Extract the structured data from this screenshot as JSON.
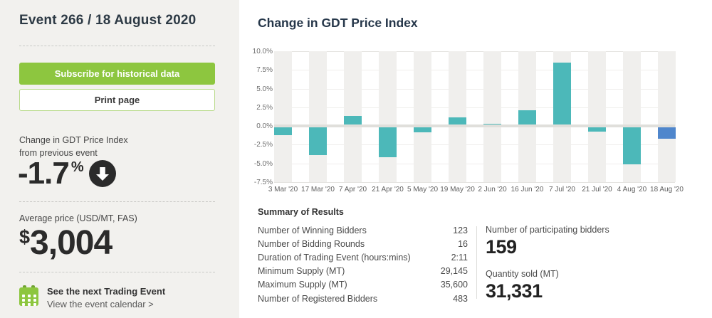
{
  "sidebar": {
    "title": "Event 266 / 18 August 2020",
    "subscribe_label": "Subscribe for historical data",
    "print_label": "Print page",
    "change_label_line1": "Change in GDT Price Index",
    "change_label_line2": "from previous event",
    "change_value": "-1.7",
    "change_unit": "%",
    "change_direction_icon": "down-arrow-circle",
    "avg_price_label": "Average price (USD/MT, FAS)",
    "avg_price_currency": "$",
    "avg_price_value": "3,004",
    "next_event_title": "See the next Trading Event",
    "next_event_link": "View the event calendar >"
  },
  "main": {
    "chart_title": "Change in GDT Price Index",
    "summary": {
      "title": "Summary of Results",
      "rows": [
        {
          "label": "Number of Winning Bidders",
          "value": "123"
        },
        {
          "label": "Number of Bidding Rounds",
          "value": "16"
        },
        {
          "label": "Duration of Trading Event (hours:mins)",
          "value": "2:11"
        },
        {
          "label": "Minimum Supply (MT)",
          "value": "29,145"
        },
        {
          "label": "Maximum Supply (MT)",
          "value": "35,600"
        },
        {
          "label": "Number of Registered Bidders",
          "value": "483"
        }
      ]
    },
    "stats": [
      {
        "label": "Number of participating bidders",
        "value": "159"
      },
      {
        "label": "Quantity sold (MT)",
        "value": "31,331"
      }
    ]
  },
  "chart_data": {
    "type": "bar",
    "title": "Change in GDT Price Index",
    "categories": [
      "3 Mar '20",
      "17 Mar '20",
      "7 Apr '20",
      "21 Apr '20",
      "5 May '20",
      "19 May '20",
      "2 Jun '20",
      "16 Jun '20",
      "7 Jul '20",
      "21 Jul '20",
      "4 Aug '20",
      "18 Aug '20"
    ],
    "values": [
      -1.2,
      -3.9,
      1.2,
      -4.2,
      -0.8,
      1.0,
      0.1,
      1.9,
      8.3,
      -0.7,
      -5.1,
      -1.7
    ],
    "xlabel": "",
    "ylabel": "",
    "ylim": [
      -7.5,
      10.0
    ],
    "ytick_step": 2.5,
    "ytick_labels": [
      "10.0%",
      "7.5%",
      "5.0%",
      "2.5%",
      "0.0%",
      "-2.5%",
      "-5.0%",
      "-7.5%"
    ],
    "grid": "horizontal",
    "legend": "none",
    "bar_color": "#4cb8b9",
    "last_bar_color": "#4f86cc",
    "band_color": "#f0efed"
  },
  "colors": {
    "accent_green": "#8dc63f",
    "sidebar_bg": "#f2f1ee",
    "title_navy": "#26374a",
    "bar_teal": "#4cb8b9",
    "bar_blue": "#4f86cc"
  }
}
